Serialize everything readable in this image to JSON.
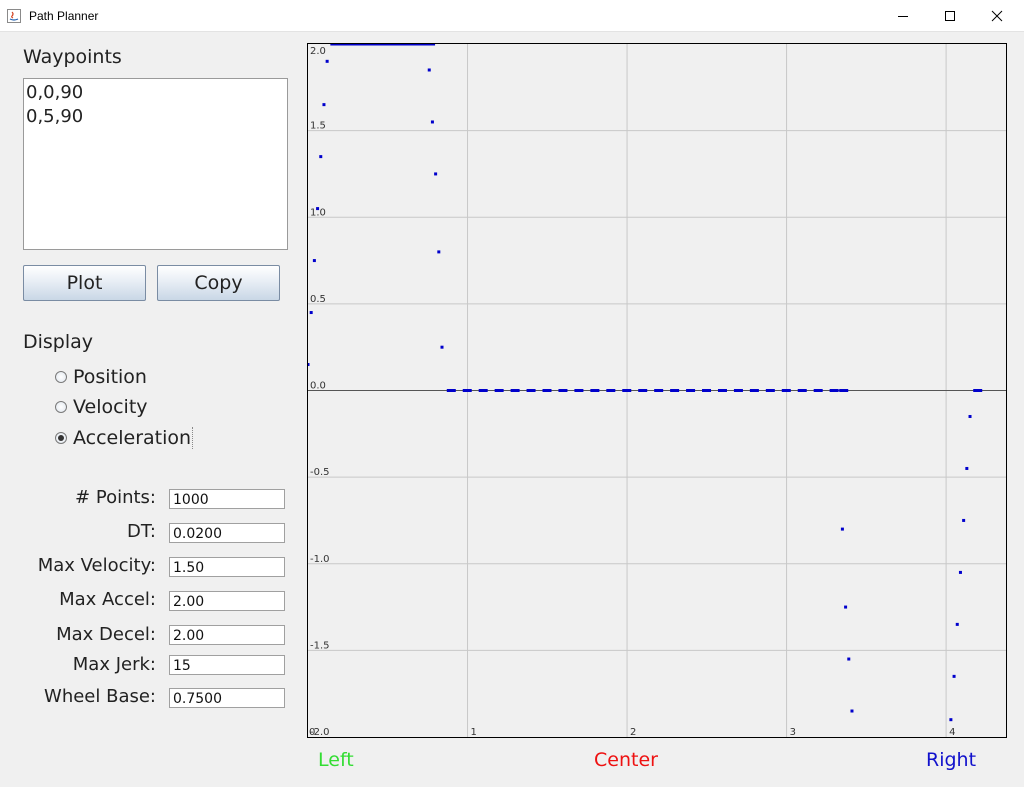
{
  "window": {
    "title": "Path Planner"
  },
  "waypoints": {
    "label": "Waypoints",
    "items": [
      "0,0,90",
      "0,5,90"
    ]
  },
  "buttons": {
    "plot": "Plot",
    "copy": "Copy"
  },
  "display": {
    "label": "Display",
    "options": [
      {
        "label": "Position",
        "selected": false
      },
      {
        "label": "Velocity",
        "selected": false
      },
      {
        "label": "Acceleration",
        "selected": true
      }
    ]
  },
  "fields": [
    {
      "label": "# Points:",
      "value": "1000"
    },
    {
      "label": "DT:",
      "value": "0.0200"
    },
    {
      "label": "Max Velocity:",
      "value": "1.50"
    },
    {
      "label": "Max Accel:",
      "value": "2.00"
    },
    {
      "label": "Max Decel:",
      "value": "2.00"
    },
    {
      "label": "Max Jerk:",
      "value": "15"
    },
    {
      "label": "Wheel Base:",
      "value": "0.7500"
    }
  ],
  "legend": {
    "left": {
      "label": "Left",
      "color": "#33dd33"
    },
    "center": {
      "label": "Center",
      "color": "#ee1111"
    },
    "right": {
      "label": "Right",
      "color": "#1111cc"
    }
  },
  "chart_data": {
    "type": "scatter",
    "xlim": [
      0,
      4.2
    ],
    "ylim": [
      -2.0,
      2.0
    ],
    "xticks": [
      "1",
      "2",
      "3",
      "4"
    ],
    "yticks": [
      "2.0",
      "1.5",
      "1.0",
      "0.5",
      "0.0",
      "-0.5",
      "-1.0",
      "-1.5",
      "-2.0"
    ],
    "corner_x_label": "0",
    "grid": true,
    "point_color": "#0000cc",
    "series": [
      {
        "x": [
          0.0,
          0.02,
          0.04,
          0.06,
          0.08,
          0.1,
          0.12
        ],
        "y": [
          0.15,
          0.45,
          0.75,
          1.05,
          1.35,
          1.65,
          1.9
        ]
      },
      {
        "x": [
          0.14,
          0.19,
          0.24,
          0.29,
          0.34,
          0.39,
          0.44,
          0.49,
          0.54,
          0.59,
          0.64,
          0.69,
          0.74
        ],
        "y": [
          2.0,
          2.0,
          2.0,
          2.0,
          2.0,
          2.0,
          2.0,
          2.0,
          2.0,
          2.0,
          2.0,
          2.0,
          2.0
        ]
      },
      {
        "x": [
          0.76,
          0.78,
          0.8,
          0.82,
          0.84
        ],
        "y": [
          1.85,
          1.55,
          1.25,
          0.8,
          0.25
        ]
      },
      {
        "x": [
          0.87,
          0.97,
          1.07,
          1.17,
          1.27,
          1.37,
          1.47,
          1.57,
          1.67,
          1.77,
          1.87,
          1.97,
          2.07,
          2.17,
          2.27,
          2.37,
          2.47,
          2.57,
          2.67,
          2.77,
          2.87,
          2.97,
          3.07,
          3.17,
          3.27,
          3.33
        ],
        "y": [
          0,
          0,
          0,
          0,
          0,
          0,
          0,
          0,
          0,
          0,
          0,
          0,
          0,
          0,
          0,
          0,
          0,
          0,
          0,
          0,
          0,
          0,
          0,
          0,
          0,
          0
        ]
      },
      {
        "x": [
          3.35,
          3.37,
          3.39,
          3.41
        ],
        "y": [
          -0.8,
          -1.25,
          -1.55,
          -1.85
        ]
      },
      {
        "x": [
          4.03,
          4.05,
          4.07,
          4.09,
          4.11,
          4.13,
          4.15,
          4.17
        ],
        "y": [
          -1.9,
          -1.65,
          -1.35,
          -1.05,
          -0.75,
          -0.45,
          -0.15,
          0.0
        ]
      }
    ]
  }
}
